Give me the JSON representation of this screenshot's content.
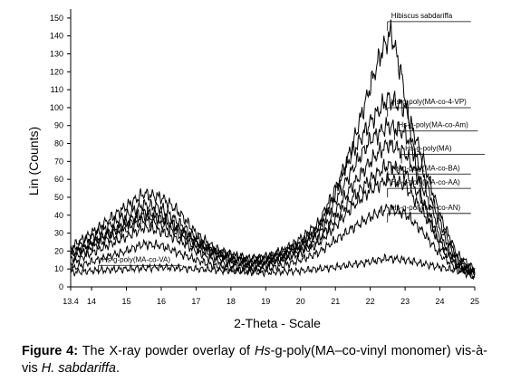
{
  "chart_data": {
    "type": "line",
    "title": "",
    "xlabel": "2-Theta - Scale",
    "ylabel": "Lin (Counts)",
    "xlim": [
      13.4,
      25
    ],
    "ylim": [
      0,
      155
    ],
    "x_ticks": [
      "13.4",
      "14",
      "15",
      "16",
      "17",
      "18",
      "19",
      "20",
      "21",
      "22",
      "23",
      "24",
      "25"
    ],
    "y_ticks": [
      "0",
      "10",
      "20",
      "30",
      "40",
      "50",
      "60",
      "70",
      "80",
      "90",
      "100",
      "110",
      "120",
      "130",
      "140",
      "150"
    ],
    "grid": false,
    "series": [
      {
        "name": "Hibiscus sabdariffa",
        "color": "#000000",
        "label_at": [
          22.6,
          150
        ],
        "x": [
          13.4,
          14,
          15,
          15.5,
          16,
          16.5,
          17,
          17.5,
          18,
          18.5,
          19,
          19.5,
          20,
          20.5,
          21,
          21.5,
          22,
          22.3,
          22.6,
          22.9,
          23.2,
          23.5,
          24,
          24.5,
          25
        ],
        "y": [
          18,
          25,
          35,
          40,
          38,
          32,
          25,
          20,
          18,
          16,
          17,
          20,
          24,
          32,
          52,
          80,
          112,
          130,
          142,
          118,
          82,
          48,
          22,
          12,
          8
        ]
      },
      {
        "name": "Hs-g-poly(MA-co-4-VP)",
        "color": "#000000",
        "label_at": [
          22.6,
          102
        ],
        "x": [
          13.4,
          14,
          15,
          15.5,
          16,
          16.5,
          17,
          17.5,
          18,
          18.5,
          19,
          19.5,
          20,
          20.5,
          21,
          21.5,
          22,
          22.5,
          23,
          23.5,
          24,
          24.5,
          25
        ],
        "y": [
          22,
          30,
          45,
          52,
          50,
          42,
          30,
          22,
          18,
          15,
          16,
          20,
          27,
          35,
          55,
          75,
          92,
          105,
          100,
          72,
          40,
          18,
          10
        ]
      },
      {
        "name": "Hs-g-poly(MA-co-Am)",
        "color": "#000000",
        "label_at": [
          22.8,
          89
        ],
        "x": [
          13.4,
          14,
          15,
          15.5,
          16,
          16.5,
          17,
          17.5,
          18,
          18.5,
          19,
          19.5,
          20,
          20.5,
          21,
          21.5,
          22,
          22.5,
          23,
          23.5,
          24,
          24.5,
          25
        ],
        "y": [
          20,
          28,
          40,
          46,
          44,
          36,
          27,
          20,
          16,
          14,
          15,
          18,
          24,
          32,
          48,
          66,
          82,
          90,
          86,
          64,
          36,
          16,
          9
        ]
      },
      {
        "name": "Hs-g-poly(MA)",
        "color": "#000000",
        "label_at": [
          23,
          76
        ],
        "x": [
          13.4,
          14,
          15,
          15.5,
          16,
          16.5,
          17,
          17.5,
          18,
          18.5,
          19,
          19.5,
          20,
          20.5,
          21,
          21.5,
          22,
          22.5,
          23,
          23.5,
          24,
          24.5,
          25
        ],
        "y": [
          18,
          24,
          36,
          42,
          40,
          33,
          25,
          19,
          15,
          13,
          14,
          17,
          22,
          29,
          42,
          57,
          70,
          80,
          75,
          56,
          32,
          15,
          8
        ]
      },
      {
        "name": "Hs-g-poly(MA-co-BA)",
        "color": "#000000",
        "label_at": [
          22.6,
          65
        ],
        "x": [
          13.4,
          14,
          15,
          15.5,
          16,
          16.5,
          17,
          17.5,
          18,
          18.5,
          19,
          19.5,
          20,
          20.5,
          21,
          21.5,
          22,
          22.5,
          23,
          23.5,
          24,
          24.5,
          25
        ],
        "y": [
          15,
          22,
          32,
          37,
          35,
          29,
          22,
          17,
          14,
          12,
          13,
          16,
          20,
          26,
          38,
          50,
          60,
          68,
          64,
          48,
          28,
          13,
          7
        ]
      },
      {
        "name": "Hs-g-poly(MA-co-AA)",
        "color": "#000000",
        "label_at": [
          22.6,
          57
        ],
        "x": [
          13.4,
          14,
          15,
          15.5,
          16,
          16.5,
          17,
          17.5,
          18,
          18.5,
          19,
          19.5,
          20,
          20.5,
          21,
          21.5,
          22,
          22.5,
          23,
          23.5,
          24,
          24.5,
          25
        ],
        "y": [
          13,
          19,
          28,
          33,
          31,
          26,
          20,
          15,
          12,
          11,
          12,
          15,
          19,
          24,
          34,
          45,
          54,
          60,
          57,
          42,
          25,
          12,
          6
        ]
      },
      {
        "name": "Hs-g-poly(MA-co-AN)",
        "color": "#000000",
        "label_at": [
          22.6,
          43
        ],
        "x": [
          13.4,
          14,
          15,
          15.5,
          16,
          16.5,
          17,
          17.5,
          18,
          18.5,
          19,
          19.5,
          20,
          20.5,
          21,
          21.5,
          22,
          22.5,
          23,
          23.5,
          24,
          24.5,
          25
        ],
        "y": [
          10,
          14,
          20,
          24,
          23,
          19,
          15,
          12,
          10,
          9,
          10,
          12,
          15,
          19,
          26,
          33,
          39,
          44,
          41,
          31,
          18,
          10,
          5
        ]
      },
      {
        "name": "Hs-g-poly(MA-co-VA)",
        "color": "#000000",
        "label_at": [
          14.3,
          14
        ],
        "x": [
          13.4,
          14,
          15,
          16,
          17,
          18,
          19,
          20,
          21,
          22,
          22.5,
          23,
          23.5,
          24,
          24.5,
          25
        ],
        "y": [
          8,
          9,
          10,
          11,
          10,
          9,
          8,
          9,
          11,
          14,
          16,
          15,
          13,
          11,
          9,
          8
        ]
      }
    ]
  },
  "caption": {
    "figure_label": "Figure 4:",
    "text_1": " The X-ray powder overlay of ",
    "italic_1": "Hs",
    "text_2": "-g-poly(MA–co-vinyl monomer) vis-à-vis ",
    "italic_2": "H. sabdariffa",
    "text_3": "."
  }
}
